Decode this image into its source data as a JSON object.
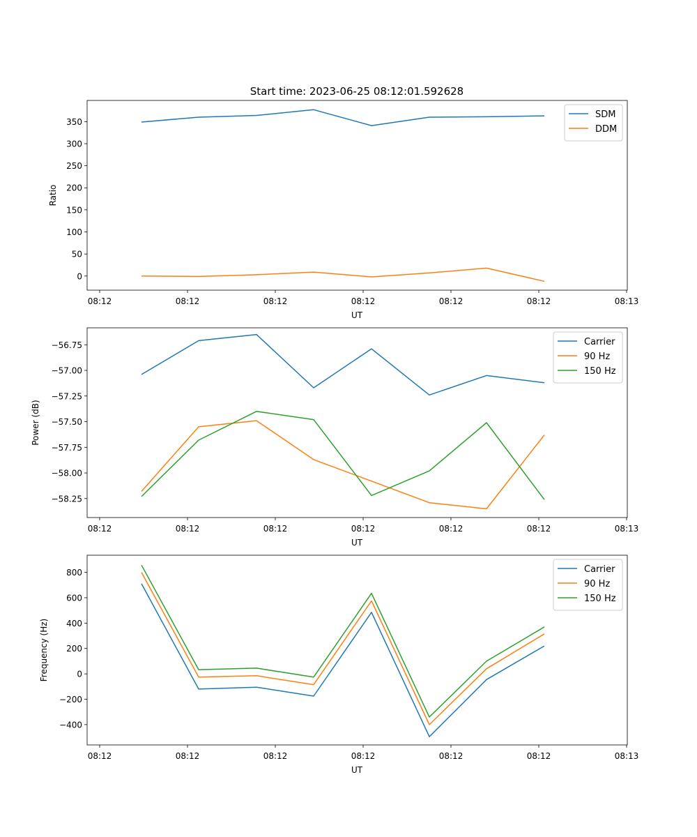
{
  "figure_title": "Start time: 2023-06-25 08:12:01.592628",
  "chart_data": [
    {
      "type": "line",
      "title": "Start time: 2023-06-25 08:12:01.592628",
      "xlabel": "UT",
      "ylabel": "Ratio",
      "x_tick_labels": [
        "08:12",
        "08:12",
        "08:12",
        "08:12",
        "08:12",
        "08:12",
        "08:13"
      ],
      "y_ticks": [
        0,
        50,
        100,
        150,
        200,
        250,
        300,
        350
      ],
      "ylim": [
        -32,
        398
      ],
      "grid": false,
      "legend_position": "top-right",
      "series": [
        {
          "name": "SDM",
          "color": "#1f77b4",
          "values": [
            349,
            360,
            364,
            377,
            341,
            360,
            361,
            363
          ]
        },
        {
          "name": "DDM",
          "color": "#ff7f0e",
          "values": [
            0,
            -1,
            3,
            9,
            -2,
            7,
            18,
            -12
          ]
        }
      ]
    },
    {
      "type": "line",
      "title": "",
      "xlabel": "UT",
      "ylabel": "Power (dB)",
      "x_tick_labels": [
        "08:12",
        "08:12",
        "08:12",
        "08:12",
        "08:12",
        "08:12",
        "08:13"
      ],
      "y_ticks": [
        -58.25,
        -58.0,
        -57.75,
        -57.5,
        -57.25,
        -57.0,
        -56.75
      ],
      "y_tick_labels": [
        "−58.25",
        "−58.00",
        "−57.75",
        "−57.50",
        "−57.25",
        "−57.00",
        "−56.75"
      ],
      "ylim": [
        -58.435,
        -56.585
      ],
      "grid": false,
      "legend_position": "top-right",
      "series": [
        {
          "name": "Carrier",
          "color": "#1f77b4",
          "values": [
            -57.04,
            -56.71,
            -56.65,
            -57.17,
            -56.79,
            -57.24,
            -57.05,
            -57.12
          ]
        },
        {
          "name": "90 Hz",
          "color": "#ff7f0e",
          "values": [
            -58.18,
            -57.55,
            -57.49,
            -57.87,
            -58.08,
            -58.29,
            -58.35,
            -57.63
          ]
        },
        {
          "name": "150 Hz",
          "color": "#2ca02c",
          "values": [
            -58.23,
            -57.68,
            -57.4,
            -57.48,
            -58.22,
            -57.98,
            -57.51,
            -58.26
          ]
        }
      ]
    },
    {
      "type": "line",
      "title": "",
      "xlabel": "UT",
      "ylabel": "Frequency (Hz)",
      "x_tick_labels": [
        "08:12",
        "08:12",
        "08:12",
        "08:12",
        "08:12",
        "08:12",
        "08:13"
      ],
      "y_ticks": [
        -400,
        -200,
        0,
        200,
        400,
        600,
        800
      ],
      "y_tick_labels": [
        "−400",
        "−200",
        "0",
        "200",
        "400",
        "600",
        "800"
      ],
      "ylim": [
        -560,
        935
      ],
      "grid": false,
      "legend_position": "top-right",
      "series": [
        {
          "name": "Carrier",
          "color": "#1f77b4",
          "values": [
            710,
            -120,
            -105,
            -175,
            485,
            -495,
            -45,
            220
          ]
        },
        {
          "name": "90 Hz",
          "color": "#ff7f0e",
          "values": [
            800,
            -25,
            -15,
            -85,
            575,
            -400,
            40,
            315
          ]
        },
        {
          "name": "150 Hz",
          "color": "#2ca02c",
          "values": [
            857,
            33,
            45,
            -25,
            635,
            -340,
            100,
            370
          ]
        }
      ]
    }
  ]
}
